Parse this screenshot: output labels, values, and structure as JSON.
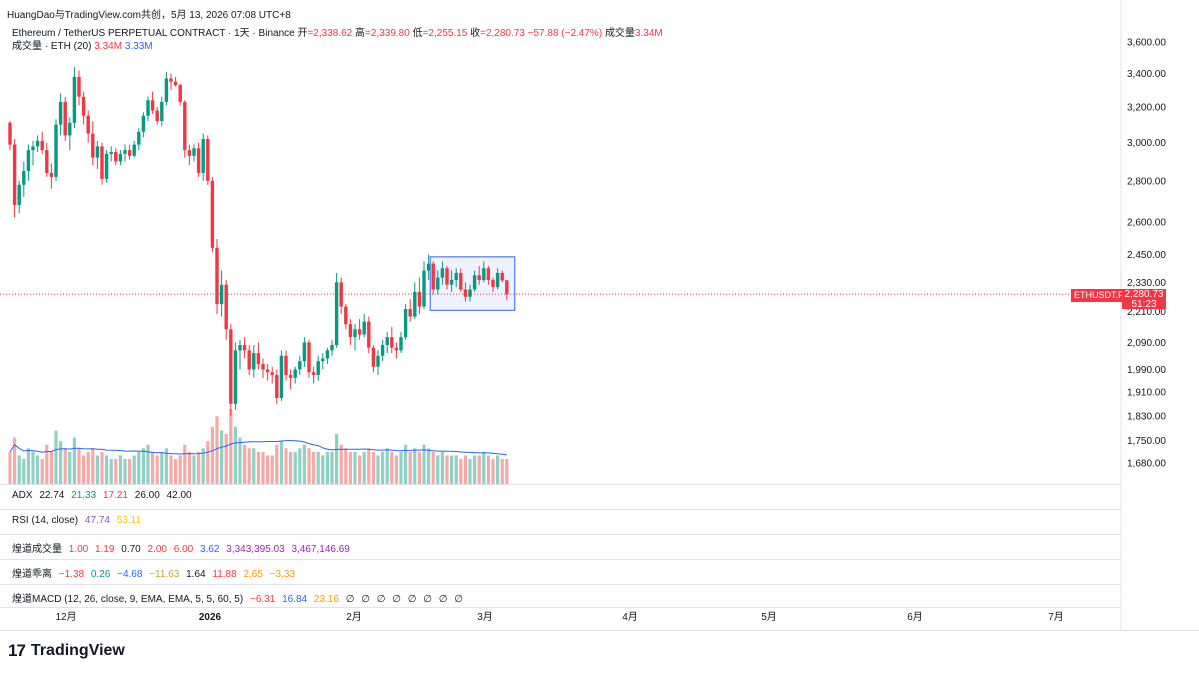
{
  "header": {
    "text": "HuangDao与TradingView.com共创，5月 13, 2026 07:08 UTC+8"
  },
  "symbol": {
    "name": "Ethereum / TetherUS PERPETUAL CONTRACT · 1天 · Binance",
    "open_label": "开",
    "open": "=2,338.62",
    "high_label": "高",
    "high": "=2,339.80",
    "low_label": "低",
    "low": "=2,255.15",
    "close_label": "收",
    "close": "=2,280.73",
    "change": "−57.88 (−2.47%)",
    "vol_label": "成交量",
    "vol": "3.34M"
  },
  "volume_indicator": {
    "label": "成交量 · ETH (20)",
    "v1": "3.34M",
    "v2": "3.33M"
  },
  "indicators": {
    "adx": {
      "label": "ADX",
      "values": [
        "22.74",
        "21.33",
        "17.21",
        "26.00",
        "42.00"
      ]
    },
    "rsi": {
      "label": "RSI (14, close)",
      "values": [
        "47.74",
        "53.11"
      ]
    },
    "hd_vol": {
      "label": "煌道成交量",
      "values": [
        "1.00",
        "1.19",
        "0.70",
        "2.00",
        "6.00",
        "3.62",
        "3,343,395.03",
        "3,467,146.69"
      ]
    },
    "hd_dev": {
      "label": "煌道乖离",
      "values": [
        "−1.38",
        "0.26",
        "−4.68",
        "−11.63",
        "1.64",
        "11.88",
        "2.65",
        "−3.33"
      ]
    },
    "hd_macd": {
      "label": "煌道MACD (12, 26, close, 9, EMA, EMA, 5, 5, 60, 5)",
      "values": [
        "−6.31",
        "16.84",
        "23.16",
        "∅",
        "∅",
        "∅",
        "∅",
        "∅",
        "∅",
        "∅",
        "∅"
      ]
    }
  },
  "price_tag": {
    "symbol": "ETHUSDT.P",
    "price": "2,280.73",
    "countdown": "51:23"
  },
  "brand": {
    "logo": "17",
    "name": "TradingView"
  },
  "colors": {
    "up": "#089981",
    "down": "#f23645",
    "ma": "#2962ff",
    "range_box": "#2962ff"
  },
  "chart_data": {
    "type": "candlestick",
    "y_axis_ticks": [
      "3,600.00",
      "3,400.00",
      "3,200.00",
      "3,000.00",
      "2,800.00",
      "2,600.00",
      "2,450.00",
      "2,330.00",
      "2,210.00",
      "2,090.00",
      "1,990.00",
      "1,910.00",
      "1,830.00",
      "1,750.00",
      "1,680.00"
    ],
    "x_axis_ticks": [
      "12月",
      "2026",
      "2月",
      "3月",
      "4月",
      "5月",
      "6月",
      "7月"
    ],
    "y_axis": "log",
    "last_price": 2280.73,
    "range_box": {
      "price_high": 2440,
      "price_low": 2215
    },
    "candles": [
      [
        3110,
        3120,
        2960,
        2990
      ],
      [
        2990,
        3020,
        2620,
        2680
      ],
      [
        2680,
        2800,
        2640,
        2780
      ],
      [
        2780,
        2900,
        2720,
        2850
      ],
      [
        2850,
        2990,
        2800,
        2960
      ],
      [
        2960,
        3010,
        2880,
        2980
      ],
      [
        2980,
        3040,
        2950,
        3010
      ],
      [
        3010,
        3060,
        2940,
        2960
      ],
      [
        2960,
        3000,
        2820,
        2840
      ],
      [
        2840,
        2890,
        2760,
        2820
      ],
      [
        2820,
        3130,
        2800,
        3100
      ],
      [
        3100,
        3280,
        3040,
        3230
      ],
      [
        3230,
        3260,
        3010,
        3040
      ],
      [
        3040,
        3140,
        2960,
        3110
      ],
      [
        3110,
        3440,
        3080,
        3380
      ],
      [
        3380,
        3420,
        3210,
        3260
      ],
      [
        3260,
        3290,
        3100,
        3150
      ],
      [
        3150,
        3180,
        3000,
        3050
      ],
      [
        3050,
        3120,
        2880,
        2920
      ],
      [
        2920,
        3010,
        2860,
        2980
      ],
      [
        2980,
        3000,
        2780,
        2810
      ],
      [
        2810,
        2960,
        2790,
        2940
      ],
      [
        2940,
        2980,
        2900,
        2950
      ],
      [
        2950,
        2970,
        2880,
        2900
      ],
      [
        2900,
        2960,
        2880,
        2940
      ],
      [
        2940,
        2990,
        2900,
        2960
      ],
      [
        2960,
        2990,
        2910,
        2930
      ],
      [
        2930,
        3010,
        2920,
        2990
      ],
      [
        2990,
        3080,
        2960,
        3060
      ],
      [
        3060,
        3170,
        3030,
        3150
      ],
      [
        3150,
        3260,
        3120,
        3240
      ],
      [
        3240,
        3290,
        3160,
        3180
      ],
      [
        3180,
        3200,
        3100,
        3120
      ],
      [
        3120,
        3260,
        3090,
        3230
      ],
      [
        3230,
        3410,
        3210,
        3370
      ],
      [
        3370,
        3400,
        3300,
        3350
      ],
      [
        3350,
        3380,
        3320,
        3330
      ],
      [
        3330,
        3340,
        3210,
        3230
      ],
      [
        3230,
        3240,
        2920,
        2960
      ],
      [
        2960,
        2990,
        2880,
        2930
      ],
      [
        2930,
        2990,
        2900,
        2970
      ],
      [
        2970,
        3000,
        2820,
        2840
      ],
      [
        2840,
        3050,
        2800,
        3020
      ],
      [
        3020,
        3040,
        2780,
        2800
      ],
      [
        2800,
        2820,
        2460,
        2480
      ],
      [
        2480,
        2520,
        2200,
        2240
      ],
      [
        2240,
        2380,
        2190,
        2320
      ],
      [
        2320,
        2340,
        2100,
        2140
      ],
      [
        2140,
        2160,
        1830,
        1870
      ],
      [
        1870,
        2090,
        1850,
        2060
      ],
      [
        2060,
        2100,
        1990,
        2080
      ],
      [
        2080,
        2110,
        2030,
        2060
      ],
      [
        2060,
        2080,
        1970,
        1990
      ],
      [
        1990,
        2080,
        1960,
        2050
      ],
      [
        2050,
        2090,
        1990,
        2010
      ],
      [
        2010,
        2030,
        1960,
        1990
      ],
      [
        1990,
        2010,
        1950,
        1980
      ],
      [
        1980,
        2000,
        1940,
        1970
      ],
      [
        1970,
        1990,
        1870,
        1890
      ],
      [
        1890,
        2060,
        1880,
        2040
      ],
      [
        2040,
        2060,
        1950,
        1970
      ],
      [
        1970,
        1990,
        1920,
        1960
      ],
      [
        1960,
        2000,
        1940,
        1990
      ],
      [
        1990,
        2040,
        1970,
        2020
      ],
      [
        2020,
        2110,
        2000,
        2090
      ],
      [
        2090,
        2100,
        1960,
        1980
      ],
      [
        1980,
        2000,
        1940,
        1970
      ],
      [
        1970,
        2040,
        1950,
        2020
      ],
      [
        2020,
        2050,
        1990,
        2030
      ],
      [
        2030,
        2070,
        2010,
        2060
      ],
      [
        2060,
        2100,
        2040,
        2080
      ],
      [
        2080,
        2370,
        2070,
        2330
      ],
      [
        2330,
        2350,
        2200,
        2230
      ],
      [
        2230,
        2240,
        2140,
        2160
      ],
      [
        2160,
        2180,
        2080,
        2110
      ],
      [
        2110,
        2160,
        2060,
        2140
      ],
      [
        2140,
        2180,
        2100,
        2120
      ],
      [
        2120,
        2200,
        2110,
        2170
      ],
      [
        2170,
        2190,
        2050,
        2070
      ],
      [
        2070,
        2080,
        1980,
        2000
      ],
      [
        2000,
        2060,
        1970,
        2040
      ],
      [
        2040,
        2100,
        2020,
        2080
      ],
      [
        2080,
        2130,
        2050,
        2110
      ],
      [
        2110,
        2150,
        2050,
        2070
      ],
      [
        2070,
        2090,
        2030,
        2060
      ],
      [
        2060,
        2130,
        2050,
        2110
      ],
      [
        2110,
        2240,
        2100,
        2220
      ],
      [
        2220,
        2260,
        2170,
        2190
      ],
      [
        2190,
        2330,
        2180,
        2290
      ],
      [
        2290,
        2350,
        2200,
        2230
      ],
      [
        2230,
        2420,
        2220,
        2380
      ],
      [
        2380,
        2450,
        2340,
        2410
      ],
      [
        2410,
        2420,
        2280,
        2300
      ],
      [
        2300,
        2380,
        2280,
        2350
      ],
      [
        2350,
        2420,
        2320,
        2390
      ],
      [
        2390,
        2400,
        2300,
        2320
      ],
      [
        2320,
        2380,
        2290,
        2340
      ],
      [
        2340,
        2390,
        2310,
        2370
      ],
      [
        2370,
        2390,
        2290,
        2300
      ],
      [
        2300,
        2330,
        2250,
        2270
      ],
      [
        2270,
        2320,
        2250,
        2300
      ],
      [
        2300,
        2380,
        2290,
        2360
      ],
      [
        2360,
        2400,
        2320,
        2340
      ],
      [
        2340,
        2420,
        2330,
        2390
      ],
      [
        2390,
        2400,
        2320,
        2340
      ],
      [
        2340,
        2350,
        2290,
        2310
      ],
      [
        2310,
        2390,
        2300,
        2370
      ],
      [
        2370,
        2380,
        2330,
        2338
      ],
      [
        2338.62,
        2339.8,
        2255.15,
        2280.73
      ]
    ],
    "volumes": [
      0.9,
      1.3,
      0.8,
      0.7,
      1.0,
      0.9,
      0.8,
      0.7,
      1.1,
      0.9,
      1.5,
      1.2,
      1.0,
      0.9,
      1.3,
      1.0,
      0.8,
      0.9,
      1.0,
      0.8,
      0.9,
      0.8,
      0.7,
      0.7,
      0.8,
      0.7,
      0.7,
      0.8,
      0.9,
      1.0,
      1.1,
      0.9,
      0.8,
      0.9,
      1.0,
      0.8,
      0.7,
      0.8,
      1.1,
      0.9,
      0.8,
      0.9,
      1.0,
      1.2,
      1.6,
      1.9,
      1.5,
      1.4,
      2.1,
      1.6,
      1.3,
      1.1,
      1.0,
      1.0,
      0.9,
      0.9,
      0.8,
      0.8,
      1.1,
      1.2,
      1.0,
      0.9,
      0.9,
      1.0,
      1.1,
      1.0,
      0.9,
      0.9,
      0.8,
      0.9,
      0.9,
      1.4,
      1.1,
      1.0,
      0.9,
      0.9,
      0.8,
      0.9,
      1.0,
      0.9,
      0.8,
      0.9,
      1.0,
      0.9,
      0.8,
      0.9,
      1.1,
      0.9,
      1.0,
      0.9,
      1.1,
      1.0,
      0.9,
      0.8,
      0.9,
      0.8,
      0.8,
      0.8,
      0.7,
      0.8,
      0.7,
      0.8,
      0.8,
      0.9,
      0.8,
      0.7,
      0.8,
      0.7,
      0.7
    ]
  }
}
